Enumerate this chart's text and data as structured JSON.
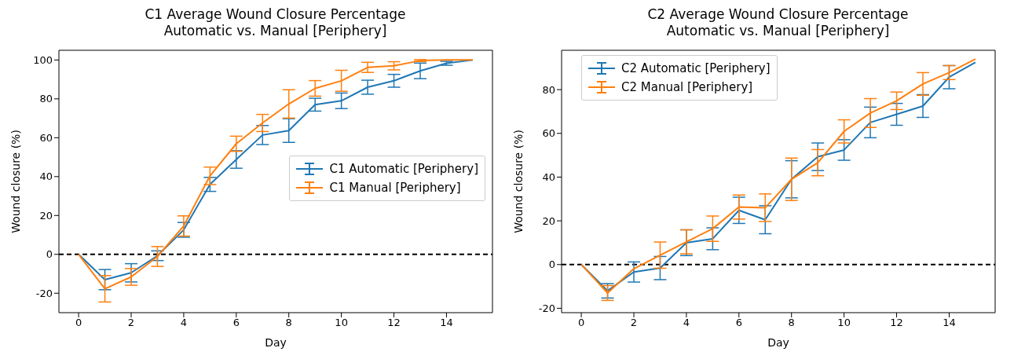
{
  "chart_data": [
    {
      "type": "line",
      "title": "C1 Average Wound Closure Percentage\nAutomatic vs. Manual [Periphery]",
      "xlabel": "Day",
      "ylabel": "Wound closure (%)",
      "x": [
        0,
        1,
        2,
        3,
        4,
        5,
        6,
        7,
        8,
        9,
        10,
        11,
        12,
        13,
        14,
        15
      ],
      "series": [
        {
          "name": "C1 Automatic [Periphery]",
          "color": "#1f77b4",
          "values": [
            0,
            -13,
            -9.5,
            -0.7,
            12.6,
            36,
            48.8,
            61.4,
            63.7,
            77,
            79,
            86,
            89.3,
            94.4,
            98.3,
            100
          ],
          "errors": [
            0,
            5.2,
            4.7,
            2.5,
            3.8,
            3.6,
            4.5,
            4.9,
            6.1,
            3.3,
            4,
            3.6,
            3.3,
            4,
            1,
            0
          ]
        },
        {
          "name": "C1 Manual [Periphery]",
          "color": "#ff7f0e",
          "values": [
            0,
            -17.7,
            -11.6,
            -1.1,
            14.6,
            40.4,
            56.9,
            67.6,
            77.4,
            85.4,
            89.3,
            96.2,
            97,
            99.7,
            100,
            100
          ],
          "errors": [
            0,
            6.8,
            4.3,
            5.1,
            5.2,
            4.5,
            3.9,
            4.4,
            7.3,
            4,
            5.4,
            2.6,
            2.1,
            0.5,
            0,
            0
          ]
        }
      ],
      "xlim": [
        -0.75,
        15.75
      ],
      "xticks": [
        0,
        2,
        4,
        6,
        8,
        10,
        12,
        14
      ],
      "ylim": [
        -30,
        105
      ],
      "yticks": [
        -20,
        0,
        20,
        40,
        60,
        80,
        100
      ],
      "ref_lines": [
        {
          "axis": "y",
          "value": 0,
          "color": "#000000",
          "line_style": "dashed"
        }
      ],
      "grid": false,
      "legend": "right",
      "marker": "none",
      "line_style": "solid"
    },
    {
      "type": "line",
      "title": "C2 Average Wound Closure Percentage\nAutomatic vs. Manual [Periphery]",
      "xlabel": "Day",
      "ylabel": "Wound closure (%)",
      "x": [
        0,
        1,
        2,
        3,
        4,
        5,
        6,
        7,
        8,
        9,
        10,
        11,
        12,
        13,
        14,
        15
      ],
      "series": [
        {
          "name": "C2 Automatic [Periphery]",
          "color": "#1f77b4",
          "values": [
            0,
            -12,
            -3.4,
            -1.6,
            10,
            11.8,
            24.8,
            20.5,
            39,
            49.3,
            52.4,
            65,
            68.7,
            72.5,
            85.7,
            92.5
          ],
          "errors": [
            0,
            3.3,
            4.6,
            5.3,
            5.9,
            5,
            6,
            6.4,
            8.5,
            6.3,
            4.7,
            7,
            5,
            5.2,
            5.3,
            0
          ]
        },
        {
          "name": "C2 Manual [Periphery]",
          "color": "#ff7f0e",
          "values": [
            0,
            -13,
            -1.9,
            4.3,
            10.4,
            16.4,
            26.3,
            26,
            39,
            46.6,
            60.9,
            69.3,
            74.9,
            82.6,
            87.8,
            94
          ],
          "errors": [
            0,
            3.4,
            0,
            6,
            5.5,
            5.8,
            5.5,
            6.3,
            9.7,
            6,
            5.3,
            6.6,
            4,
            5.2,
            3.2,
            0
          ]
        }
      ],
      "xlim": [
        -0.75,
        15.75
      ],
      "xticks": [
        0,
        2,
        4,
        6,
        8,
        10,
        12,
        14
      ],
      "ylim": [
        -22,
        98
      ],
      "yticks": [
        -20,
        0,
        20,
        40,
        60,
        80
      ],
      "ref_lines": [
        {
          "axis": "y",
          "value": 0,
          "color": "#000000",
          "line_style": "dashed"
        }
      ],
      "grid": false,
      "legend": "top left",
      "marker": "none",
      "line_style": "solid"
    }
  ]
}
